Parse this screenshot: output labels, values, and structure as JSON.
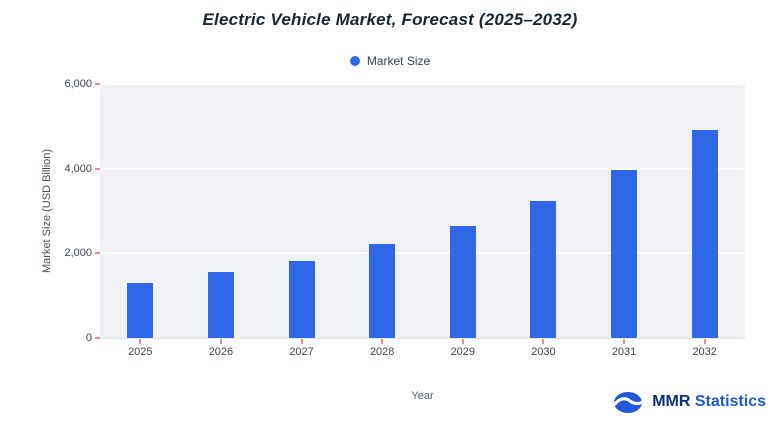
{
  "page": {
    "title": "Electric Vehicle Market, Forecast (2025–2032)"
  },
  "legend": {
    "label": "Market Size"
  },
  "axes": {
    "y_title": "Market Size (USD Billion)",
    "x_title": "Year"
  },
  "brand": {
    "name_bold": "MMR",
    "name_rest": "Statistics"
  },
  "chart_data": {
    "type": "bar",
    "title": "Electric Vehicle Market, Forecast (2025–2032)",
    "categories": [
      "2025",
      "2026",
      "2027",
      "2028",
      "2029",
      "2030",
      "2031",
      "2032"
    ],
    "values": [
      1300,
      1550,
      1830,
      2210,
      2650,
      3230,
      3970,
      4920
    ],
    "xlabel": "Year",
    "ylabel": "Market Size (USD Billion)",
    "ylim": [
      0,
      6000
    ],
    "yticks": [
      0,
      2000,
      4000,
      6000
    ],
    "ytick_labels": [
      "0",
      "2,000",
      "4,000",
      "6,000"
    ],
    "legend": [
      "Market Size"
    ],
    "legend_position": "top",
    "grid": true,
    "bar_color": "#2e67e8",
    "plot_background": "#f0f1f5",
    "gridline_color": "#ffffff",
    "tick_color": "#f08c8c"
  }
}
